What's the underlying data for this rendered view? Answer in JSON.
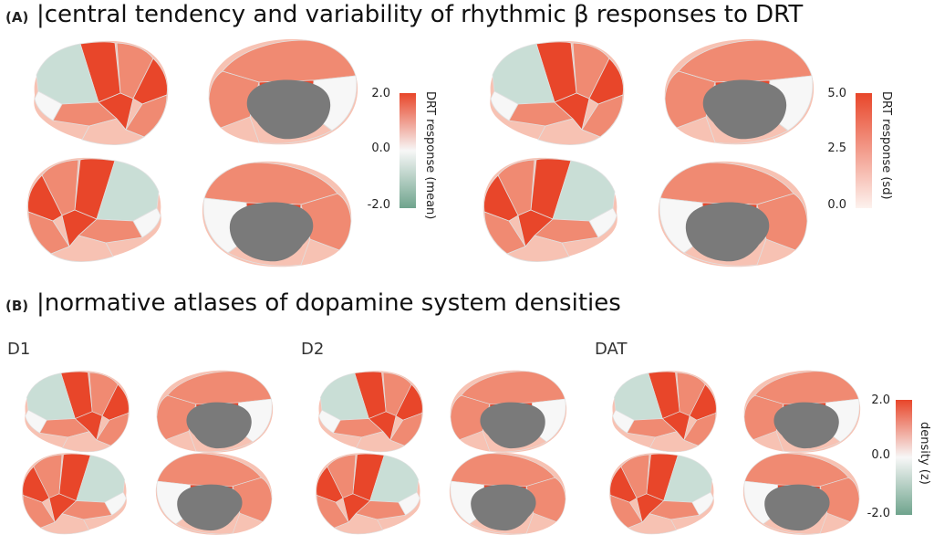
{
  "panelA": {
    "tag": "(A)",
    "title": "central tendency and variability of rhythmic β responses to DRT",
    "colorbar_mean": {
      "title": "DRT response (mean)",
      "ticks": [
        "2.0",
        "0.0",
        "-2.0"
      ]
    },
    "colorbar_sd": {
      "title": "DRT response (sd)",
      "ticks": [
        "5.0",
        "2.5",
        "0.0"
      ]
    }
  },
  "panelB": {
    "tag": "(B)",
    "title": "normative atlases of dopamine system densities",
    "maps": [
      {
        "label": "D1"
      },
      {
        "label": "D2"
      },
      {
        "label": "DAT"
      }
    ],
    "colorbar": {
      "title": "density (z)",
      "ticks": [
        "2.0",
        "0.0",
        "-2.0"
      ]
    }
  },
  "colors": {
    "strong_red": "#e8462a",
    "mid_red": "#f08a72",
    "light_red": "#f7c2b3",
    "white": "#f7f7f7",
    "light_green": "#c9ded6",
    "mid_green": "#9cc2b2",
    "strong_green": "#6fa48d",
    "medial_wall": "#7a7a7a"
  }
}
